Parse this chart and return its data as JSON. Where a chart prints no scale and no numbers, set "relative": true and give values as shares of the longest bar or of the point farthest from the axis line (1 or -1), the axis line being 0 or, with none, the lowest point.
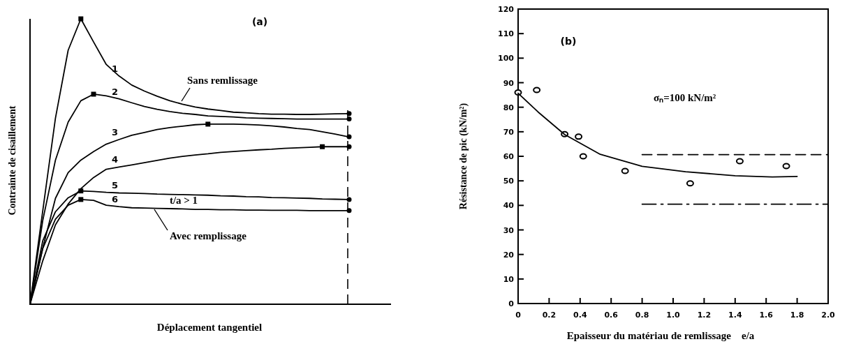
{
  "chart_data": [
    {
      "type": "line",
      "title": "(a)",
      "xlabel": "Déplacement tangentiel",
      "ylabel": "Contrainte de cisaillement",
      "relative": true,
      "grid": false,
      "marker": "none",
      "line_style": "solid",
      "categories": [
        null,
        null,
        null,
        null,
        null,
        null,
        null,
        null,
        null,
        null,
        null,
        null,
        null,
        null,
        null,
        null,
        null,
        null,
        null,
        null,
        null,
        null,
        null,
        null,
        null,
        null
      ],
      "annotations": [
        "Sans remlissage",
        "Avec remplissage",
        "t/a > 1"
      ],
      "series": [
        {
          "name": "1",
          "color": "#000000",
          "values": [
            0,
            0.327,
            0.652,
            0.89,
            1,
            0.919,
            0.84,
            0.8,
            0.768,
            0.747,
            0.729,
            0.713,
            0.701,
            0.691,
            0.684,
            0.679,
            0.673,
            0.671,
            0.668,
            0.666,
            0.666,
            0.665,
            0.665,
            0.666,
            0.667,
            0.668
          ]
        },
        {
          "name": "2",
          "color": "#000000",
          "values": [
            0,
            0.293,
            0.505,
            0.638,
            0.713,
            0.736,
            0.73,
            0.72,
            0.706,
            0.693,
            0.683,
            0.675,
            0.669,
            0.665,
            0.66,
            0.658,
            0.656,
            0.653,
            0.652,
            0.651,
            0.65,
            0.649,
            0.649,
            0.649,
            0.649,
            0.649
          ]
        },
        {
          "name": "3",
          "color": "#000000",
          "values": [
            0,
            0.197,
            0.371,
            0.461,
            0.505,
            0.535,
            0.561,
            0.577,
            0.592,
            0.602,
            0.612,
            0.619,
            0.624,
            0.629,
            0.631,
            0.631,
            0.631,
            0.63,
            0.628,
            0.625,
            0.621,
            0.616,
            0.612,
            0.604,
            0.596,
            0.587
          ]
        },
        {
          "name": "4",
          "color": "#000000",
          "values": [
            0,
            0.152,
            0.278,
            0.351,
            0.405,
            0.444,
            0.473,
            0.481,
            0.488,
            0.496,
            0.504,
            0.512,
            0.518,
            0.523,
            0.527,
            0.532,
            0.535,
            0.538,
            0.541,
            0.543,
            0.546,
            0.548,
            0.55,
            0.552,
            0.552,
            0.552
          ]
        },
        {
          "name": "5",
          "color": "#000000",
          "values": [
            0,
            0.222,
            0.324,
            0.373,
            0.397,
            0.395,
            0.392,
            0.39,
            0.389,
            0.388,
            0.386,
            0.385,
            0.384,
            0.383,
            0.382,
            0.38,
            0.379,
            0.377,
            0.376,
            0.374,
            0.373,
            0.372,
            0.371,
            0.369,
            0.368,
            0.367
          ]
        },
        {
          "name": "6",
          "color": "#000000",
          "values": [
            0,
            0.195,
            0.298,
            0.347,
            0.367,
            0.364,
            0.347,
            0.342,
            0.338,
            0.337,
            0.336,
            0.335,
            0.334,
            0.332,
            0.332,
            0.331,
            0.331,
            0.33,
            0.33,
            0.329,
            0.329,
            0.329,
            0.328,
            0.328,
            0.328,
            0.328
          ]
        }
      ]
    },
    {
      "type": "scatter",
      "title": "(b)",
      "xlabel": "Epaisseur du matériau de remlissage    e/a",
      "ylabel": "Résistance de pic (kN/m²)",
      "xlim": [
        0,
        2
      ],
      "ylim": [
        0,
        120
      ],
      "grid": false,
      "xticks": [
        0,
        0.2,
        0.4,
        0.6,
        0.8,
        {
          "value": 1,
          "label": "1.0"
        },
        1.2,
        1.4,
        1.6,
        1.8,
        {
          "value": 2,
          "label": "2.0"
        }
      ],
      "yticks": [
        0,
        10,
        20,
        30,
        40,
        50,
        60,
        70,
        80,
        90,
        100,
        110,
        120
      ],
      "annotations": [
        "σₙ=100 kN/m²"
      ],
      "series": [
        {
          "color": "#000000",
          "marker": "circle",
          "x": [
            0,
            0.12,
            0.3,
            0.39,
            0.42,
            0.69,
            1.11,
            1.43,
            1.73
          ],
          "values": [
            86,
            87,
            69,
            68,
            60,
            54,
            49,
            58,
            56
          ]
        },
        {
          "type": "line",
          "color": "#000000",
          "marker": "none",
          "line_style": "solid",
          "x": [
            0,
            0.13,
            0.3,
            0.53,
            0.8,
            1.08,
            1.4,
            1.64,
            1.8
          ],
          "values": [
            85.7,
            78,
            68.9,
            60.8,
            55.9,
            53.7,
            52.1,
            51.6,
            51.8
          ]
        },
        {
          "type": "line",
          "color": "#000000",
          "marker": "none",
          "line_style": "dashed",
          "x": [
            0.8,
            2
          ],
          "values": [
            60.7,
            60.7
          ]
        },
        {
          "type": "line",
          "color": "#000000",
          "marker": "none",
          "line_style": "dashdot",
          "x": [
            0.8,
            2
          ],
          "values": [
            40.5,
            40.5
          ]
        }
      ]
    }
  ]
}
